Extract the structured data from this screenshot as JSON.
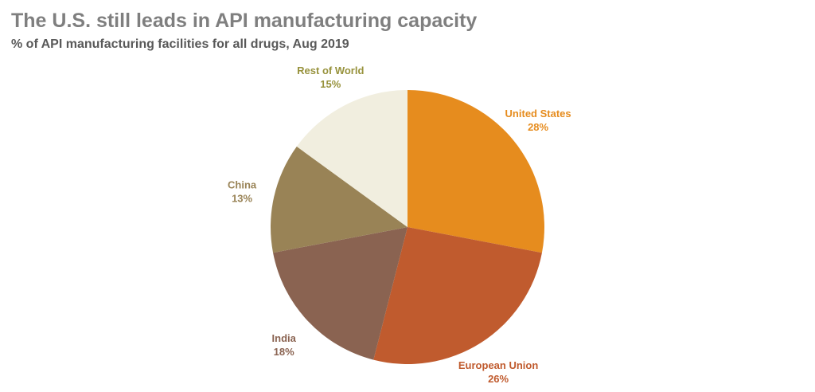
{
  "header": {
    "title": "The U.S. still leads in API manufacturing capacity",
    "subtitle": "% of API manufacturing facilities for all drugs, Aug 2019"
  },
  "chart_data": {
    "type": "pie",
    "title": "The U.S. still leads in API manufacturing capacity",
    "subtitle": "% of API manufacturing facilities for all drugs, Aug 2019",
    "unit": "%",
    "start_angle_deg": 0,
    "direction": "clockwise",
    "legend_position": "labels-outside",
    "slices": [
      {
        "label": "United States",
        "value": 28,
        "color": "#E68C1E",
        "label_color": "#E68C1E"
      },
      {
        "label": "European Union",
        "value": 26,
        "color": "#C05B2E",
        "label_color": "#C05B2E"
      },
      {
        "label": "India",
        "value": 18,
        "color": "#8A6351",
        "label_color": "#8A6351"
      },
      {
        "label": "China",
        "value": 13,
        "color": "#998356",
        "label_color": "#998356"
      },
      {
        "label": "Rest of World",
        "value": 15,
        "color": "#F1EEDF",
        "label_color": "#97923C"
      }
    ]
  }
}
